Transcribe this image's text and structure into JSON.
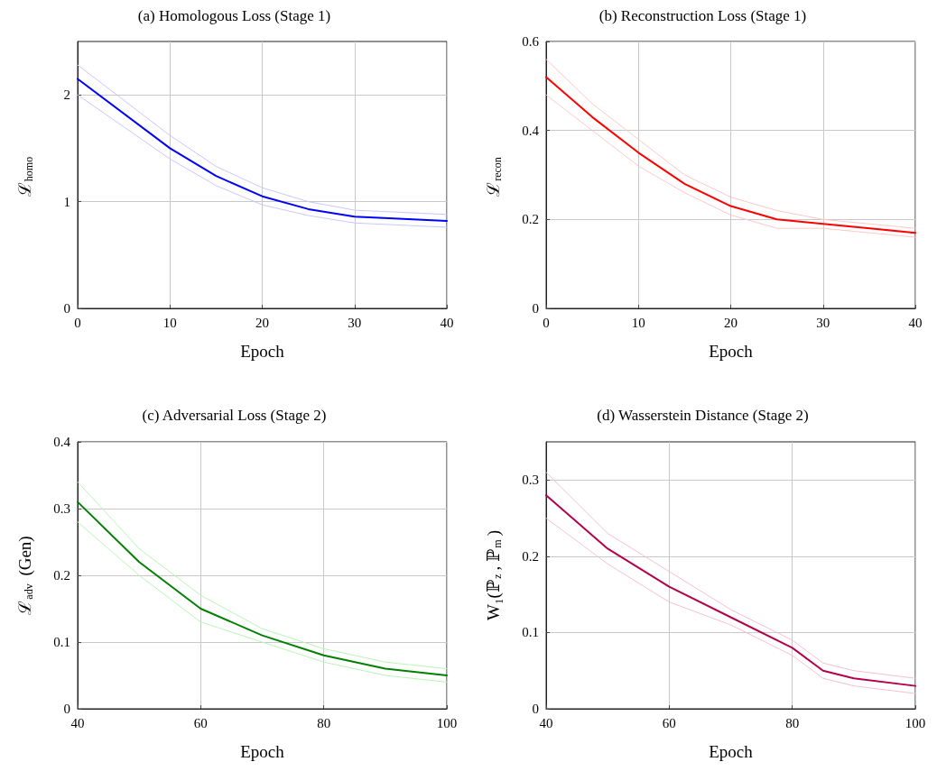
{
  "chart_data": [
    {
      "type": "line",
      "title": "(a) Homologous Loss (Stage 1)",
      "xlabel": "Epoch",
      "ylabel": "ℒ$_{homo}$",
      "x": [
        0,
        10,
        15,
        20,
        25,
        30,
        40
      ],
      "xlim": [
        0,
        40
      ],
      "xticks": [
        0,
        10,
        20,
        30,
        40
      ],
      "ylim": [
        0,
        2.5
      ],
      "yticks": [
        0,
        1,
        2
      ],
      "grid": true,
      "marker": "none",
      "series": [
        {
          "color": "#0000ff",
          "values": [
            2.15,
            1.5,
            1.24,
            1.05,
            0.93,
            0.86,
            0.82
          ]
        },
        {
          "color": "#c7c7ff",
          "values": [
            2.0,
            1.4,
            1.15,
            0.97,
            0.87,
            0.8,
            0.76
          ]
        },
        {
          "color": "#c7c7ff",
          "values": [
            2.28,
            1.62,
            1.33,
            1.13,
            1.0,
            0.92,
            0.88
          ]
        }
      ]
    },
    {
      "type": "line",
      "title": "(b) Reconstruction Loss (Stage 1)",
      "xlabel": "Epoch",
      "ylabel": "ℒ$_{recon}$",
      "x": [
        0,
        5,
        10,
        15,
        20,
        25,
        30,
        40
      ],
      "xlim": [
        0,
        40
      ],
      "xticks": [
        0,
        10,
        20,
        30,
        40
      ],
      "ylim": [
        0,
        0.6
      ],
      "yticks": [
        0,
        0.2,
        0.4,
        0.6
      ],
      "grid": true,
      "marker": "none",
      "series": [
        {
          "color": "#ff0000",
          "values": [
            0.52,
            0.43,
            0.35,
            0.28,
            0.23,
            0.2,
            0.19,
            0.17
          ]
        },
        {
          "color": "#ffc7c7",
          "values": [
            0.48,
            0.4,
            0.32,
            0.26,
            0.21,
            0.18,
            0.18,
            0.16
          ]
        },
        {
          "color": "#ffc7c7",
          "values": [
            0.56,
            0.46,
            0.38,
            0.3,
            0.25,
            0.22,
            0.2,
            0.18
          ]
        }
      ]
    },
    {
      "type": "line",
      "title": "(c) Adversarial Loss (Stage 2)",
      "xlabel": "Epoch",
      "ylabel": "ℒ$_{adv}$ (Gen)",
      "x": [
        40,
        50,
        60,
        70,
        80,
        90,
        100
      ],
      "xlim": [
        40,
        100
      ],
      "xticks": [
        40,
        60,
        80,
        100
      ],
      "ylim": [
        0,
        0.4
      ],
      "yticks": [
        0,
        0.1,
        0.2,
        0.3,
        0.4
      ],
      "grid": true,
      "marker": "none",
      "series": [
        {
          "color": "#008000",
          "values": [
            0.31,
            0.22,
            0.15,
            0.11,
            0.08,
            0.06,
            0.05
          ]
        },
        {
          "color": "#b8f5b8",
          "values": [
            0.28,
            0.2,
            0.13,
            0.1,
            0.07,
            0.05,
            0.04
          ]
        },
        {
          "color": "#b8f5b8",
          "values": [
            0.34,
            0.24,
            0.17,
            0.12,
            0.09,
            0.07,
            0.06
          ]
        }
      ]
    },
    {
      "type": "line",
      "title": "(d) Wasserstein Distance (Stage 2)",
      "xlabel": "Epoch",
      "ylabel": "W₁(ℙ$_{z}$, ℙ$_{m}$)",
      "x": [
        40,
        50,
        60,
        70,
        80,
        85,
        90,
        100
      ],
      "xlim": [
        40,
        100
      ],
      "xticks": [
        40,
        60,
        80,
        100
      ],
      "ylim": [
        0,
        0.35
      ],
      "yticks": [
        0,
        0.1,
        0.2,
        0.3
      ],
      "grid": true,
      "marker": "none",
      "series": [
        {
          "color": "#b5004b",
          "values": [
            0.28,
            0.21,
            0.16,
            0.12,
            0.08,
            0.05,
            0.04,
            0.03
          ]
        },
        {
          "color": "#f5c0cf",
          "values": [
            0.25,
            0.19,
            0.14,
            0.11,
            0.07,
            0.04,
            0.03,
            0.02
          ]
        },
        {
          "color": "#f5c0cf",
          "values": [
            0.31,
            0.23,
            0.18,
            0.13,
            0.09,
            0.06,
            0.05,
            0.04
          ]
        }
      ]
    }
  ]
}
